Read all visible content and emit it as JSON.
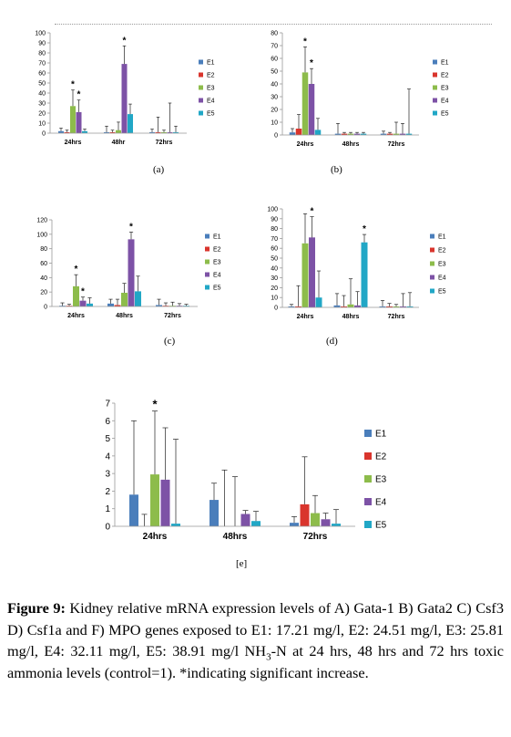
{
  "colors": {
    "E1": "#4a7ebb",
    "E2": "#d9352d",
    "E3": "#8dbc4b",
    "E4": "#7d52a6",
    "E5": "#21a7c6"
  },
  "panels": [
    {
      "label": "(a)"
    },
    {
      "label": "(b)"
    },
    {
      "label": "(c)"
    },
    {
      "label": "(d)"
    },
    {
      "label": "[e]"
    }
  ],
  "chart_data": [
    {
      "type": "bar",
      "panel": "(a)",
      "categories": [
        "24hrs",
        "48hr",
        "72hrs"
      ],
      "ylim": [
        0,
        100
      ],
      "yticks": [
        0,
        10,
        20,
        30,
        40,
        50,
        60,
        70,
        80,
        90,
        100
      ],
      "legend": [
        "E1",
        "E2",
        "E3",
        "E4",
        "E5"
      ],
      "series": [
        {
          "name": "E1",
          "values": [
            2,
            1,
            1
          ],
          "errors": [
            3,
            6,
            3
          ]
        },
        {
          "name": "E2",
          "values": [
            1,
            1,
            1
          ],
          "errors": [
            2,
            2,
            15
          ]
        },
        {
          "name": "E3",
          "values": [
            27,
            3,
            1
          ],
          "errors": [
            16,
            8,
            2
          ]
        },
        {
          "name": "E4",
          "values": [
            21,
            69,
            1
          ],
          "errors": [
            12,
            18,
            29
          ]
        },
        {
          "name": "E5",
          "values": [
            2,
            19,
            1
          ],
          "errors": [
            2,
            10,
            6
          ]
        }
      ],
      "significant": [
        {
          "category": 0,
          "series": 2
        },
        {
          "category": 0,
          "series": 3
        },
        {
          "category": 1,
          "series": 3
        }
      ]
    },
    {
      "type": "bar",
      "panel": "(b)",
      "categories": [
        "24hrs",
        "48hrs",
        "72hrs"
      ],
      "ylim": [
        0,
        80
      ],
      "yticks": [
        0,
        10,
        20,
        30,
        40,
        50,
        60,
        70,
        80
      ],
      "legend": [
        "E1",
        "E2",
        "E3",
        "E4",
        "E5"
      ],
      "series": [
        {
          "name": "E1",
          "values": [
            2,
            1,
            1
          ],
          "errors": [
            3,
            8,
            2
          ]
        },
        {
          "name": "E2",
          "values": [
            5,
            1,
            1
          ],
          "errors": [
            11,
            1,
            1
          ]
        },
        {
          "name": "E3",
          "values": [
            49,
            1,
            1
          ],
          "errors": [
            20,
            1,
            9
          ]
        },
        {
          "name": "E4",
          "values": [
            40,
            1,
            1
          ],
          "errors": [
            12,
            1,
            8
          ]
        },
        {
          "name": "E5",
          "values": [
            4,
            1,
            1
          ],
          "errors": [
            9,
            1,
            35
          ]
        }
      ],
      "significant": [
        {
          "category": 0,
          "series": 2
        },
        {
          "category": 0,
          "series": 3
        }
      ]
    },
    {
      "type": "bar",
      "panel": "(c)",
      "categories": [
        "24hrs",
        "48hrs",
        "72hrs"
      ],
      "ylim": [
        0,
        120
      ],
      "yticks": [
        0,
        20,
        40,
        60,
        80,
        100,
        120
      ],
      "legend": [
        "E1",
        "E2",
        "E3",
        "E4",
        "E5"
      ],
      "series": [
        {
          "name": "E1",
          "values": [
            1,
            4,
            2
          ],
          "errors": [
            4,
            6,
            8
          ]
        },
        {
          "name": "E2",
          "values": [
            1,
            2,
            1
          ],
          "errors": [
            2,
            8,
            4
          ]
        },
        {
          "name": "E3",
          "values": [
            28,
            19,
            1
          ],
          "errors": [
            16,
            13,
            5
          ]
        },
        {
          "name": "E4",
          "values": [
            8,
            93,
            1
          ],
          "errors": [
            5,
            10,
            3
          ]
        },
        {
          "name": "E5",
          "values": [
            4,
            21,
            1
          ],
          "errors": [
            8,
            21,
            2
          ]
        }
      ],
      "significant": [
        {
          "category": 0,
          "series": 2
        },
        {
          "category": 0,
          "series": 3
        },
        {
          "category": 1,
          "series": 3
        }
      ]
    },
    {
      "type": "bar",
      "panel": "(d)",
      "categories": [
        "24hrs",
        "48hrs",
        "72hrs"
      ],
      "ylim": [
        0,
        100
      ],
      "yticks": [
        0,
        10,
        20,
        30,
        40,
        50,
        60,
        70,
        80,
        90,
        100
      ],
      "legend": [
        "E1",
        "E2",
        "E3",
        "E4",
        "E5"
      ],
      "series": [
        {
          "name": "E1",
          "values": [
            1,
            2,
            1
          ],
          "errors": [
            2,
            12,
            6
          ]
        },
        {
          "name": "E2",
          "values": [
            1,
            1,
            1
          ],
          "errors": [
            21,
            11,
            3
          ]
        },
        {
          "name": "E3",
          "values": [
            65,
            3,
            1
          ],
          "errors": [
            30,
            26,
            2
          ]
        },
        {
          "name": "E4",
          "values": [
            71,
            2,
            1
          ],
          "errors": [
            21,
            14,
            13
          ]
        },
        {
          "name": "E5",
          "values": [
            10,
            66,
            1
          ],
          "errors": [
            27,
            8,
            14
          ]
        }
      ],
      "significant": [
        {
          "category": 0,
          "series": 3
        },
        {
          "category": 1,
          "series": 4
        }
      ]
    },
    {
      "type": "bar",
      "panel": "[e]",
      "categories": [
        "24hrs",
        "48hrs",
        "72hrs"
      ],
      "ylim": [
        0,
        7
      ],
      "yticks": [
        0,
        1,
        2,
        3,
        4,
        5,
        6,
        7
      ],
      "legend": [
        "E1",
        "E2",
        "E3",
        "E4",
        "E5"
      ],
      "series": [
        {
          "name": "E1",
          "values": [
            1.8,
            1.5,
            0.2
          ],
          "errors": [
            4.2,
            0.95,
            0.35
          ]
        },
        {
          "name": "E2",
          "values": [
            0.0,
            0.0,
            1.25
          ],
          "errors": [
            0.68,
            3.2,
            2.7
          ]
        },
        {
          "name": "E3",
          "values": [
            2.95,
            0.0,
            0.75
          ],
          "errors": [
            3.6,
            2.82,
            1.0
          ]
        },
        {
          "name": "E4",
          "values": [
            2.65,
            0.7,
            0.4
          ],
          "errors": [
            2.95,
            0.2,
            0.35
          ]
        },
        {
          "name": "E5",
          "values": [
            0.15,
            0.3,
            0.15
          ],
          "errors": [
            4.8,
            0.55,
            0.8
          ]
        }
      ],
      "significant": [
        {
          "category": 0,
          "series": 2
        }
      ]
    }
  ],
  "caption": {
    "fig_label": "Figure 9:",
    "text_a": " Kidney relative mRNA expression levels of A) Gata-1 B) Gata2 C) Csf3 D) Csf1a and F) MPO genes exposed to E1: 17.21 mg/l, E2: 24.51 mg/l, E3: 25.81 mg/l, E4: 32.11 mg/l, E5: 38.91 mg/l NH",
    "sub": "3",
    "text_b": "-N at 24 hrs, 48 hrs and 72 hrs toxic ammonia levels (control=1). *indicating significant increase."
  }
}
